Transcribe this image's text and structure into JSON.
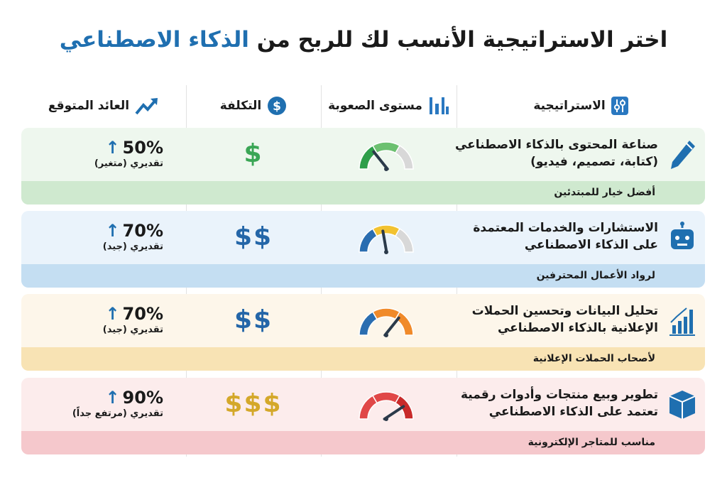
{
  "title": {
    "main": "اختر الاستراتيجية الأنسب لك للربح من",
    "highlight": "الذكاء الاصطناعي"
  },
  "headers": {
    "strategy": "الاستراتيجية",
    "difficulty": "مستوى الصعوبة",
    "cost": "التكلفة",
    "return": "العائد المتوقع"
  },
  "header_icons": {
    "strategy": "sliders-icon",
    "difficulty": "bar-levels-icon",
    "cost": "dollar-circle-icon",
    "return": "trending-up-icon"
  },
  "rows": [
    {
      "strategy": "صناعة المحتوى بالذكاء الاصطناعي (كتابة، تصميم، فيديو)",
      "icon": "pencil-icon",
      "difficulty_level": 0.3,
      "gauge_colors": [
        "#2e9e4a",
        "#6cc070",
        "#d8d8d8"
      ],
      "cost": "$",
      "cost_color": "#3aa655",
      "return": "50%",
      "return_note": "تقديري (متغير)",
      "audience": "أفضل خيار للمبتدئين",
      "bg": "#eef7ee",
      "band": "#cfe9cf"
    },
    {
      "strategy": "الاستشارات والخدمات المعتمدة على الذكاء الاصطناعي",
      "icon": "robot-icon",
      "difficulty_level": 0.45,
      "gauge_colors": [
        "#2a6db0",
        "#f2c230",
        "#d8d8d8"
      ],
      "cost": "$$",
      "cost_color": "#2466a8",
      "return": "70%",
      "return_note": "تقديري (جيد)",
      "audience": "لرواد الأعمال المحترفين",
      "bg": "#eaf3fb",
      "band": "#c4def2"
    },
    {
      "strategy": "تحليل البيانات وتحسين الحملات الإعلانية بالذكاء الاصطناعي",
      "icon": "bar-chart-icon",
      "difficulty_level": 0.7,
      "gauge_colors": [
        "#2a6db0",
        "#f08a2a",
        "#f08a2a"
      ],
      "cost": "$$",
      "cost_color": "#2466a8",
      "return": "70%",
      "return_note": "تقديري (جيد)",
      "audience": "لأصحاب الحملات الإعلانية",
      "bg": "#fdf6ea",
      "band": "#f8e3b4"
    },
    {
      "strategy": "تطوير وبيع منتجات وأدوات رقمية تعتمد على الذكاء الاصطناعي",
      "icon": "box-icon",
      "difficulty_level": 0.8,
      "gauge_colors": [
        "#e04848",
        "#e04848",
        "#c82a2a"
      ],
      "cost": "$$$",
      "cost_color": "#d4a82a",
      "return": "90%",
      "return_note": "تقديري (مرتفع جداً)",
      "audience": "مناسب للمتاجر الإلكترونية",
      "bg": "#fcecec",
      "band": "#f5c8cc"
    }
  ]
}
